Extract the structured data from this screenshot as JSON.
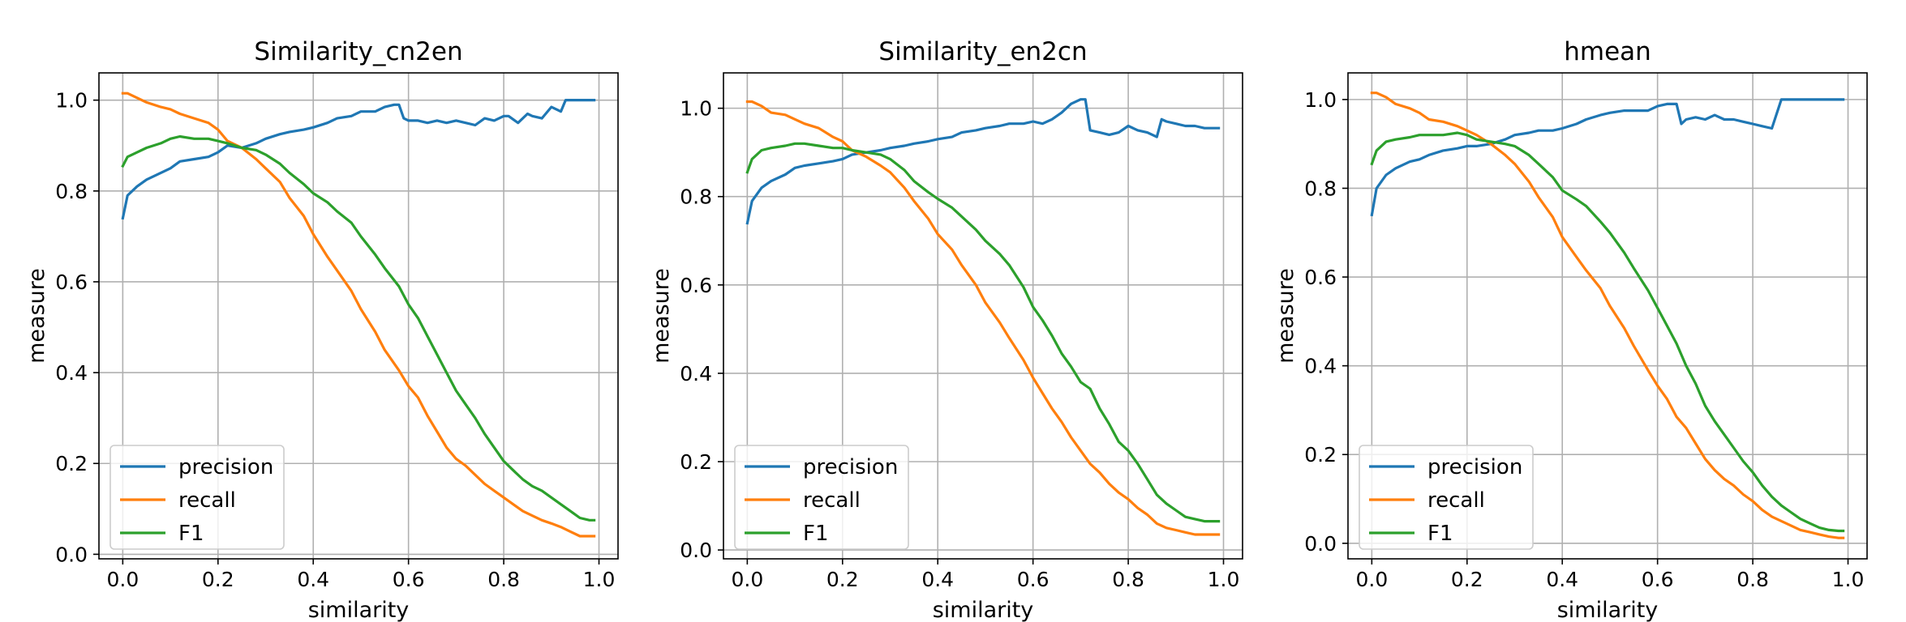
{
  "chart_data": [
    {
      "type": "line",
      "title": "Similarity_cn2en",
      "xlabel": "similarity",
      "ylabel": "measure",
      "xlim": [
        -0.05,
        1.04
      ],
      "ylim": [
        -0.01,
        1.06
      ],
      "xticks": [
        0.0,
        0.2,
        0.4,
        0.6,
        0.8,
        1.0
      ],
      "yticks": [
        0.0,
        0.2,
        0.4,
        0.6,
        0.8,
        1.0
      ],
      "grid": true,
      "legend": "lower-left",
      "series": [
        {
          "name": "precision",
          "color": "#1f77b4",
          "x": [
            0.0,
            0.01,
            0.03,
            0.05,
            0.08,
            0.1,
            0.12,
            0.15,
            0.18,
            0.2,
            0.22,
            0.25,
            0.28,
            0.3,
            0.33,
            0.35,
            0.38,
            0.4,
            0.43,
            0.45,
            0.48,
            0.5,
            0.53,
            0.55,
            0.57,
            0.58,
            0.59,
            0.6,
            0.62,
            0.64,
            0.66,
            0.68,
            0.7,
            0.72,
            0.74,
            0.76,
            0.78,
            0.8,
            0.81,
            0.83,
            0.85,
            0.86,
            0.88,
            0.9,
            0.92,
            0.93,
            0.95,
            0.97,
            0.99
          ],
          "y": [
            0.74,
            0.79,
            0.81,
            0.825,
            0.84,
            0.85,
            0.865,
            0.87,
            0.875,
            0.885,
            0.9,
            0.895,
            0.905,
            0.915,
            0.925,
            0.93,
            0.935,
            0.94,
            0.95,
            0.96,
            0.965,
            0.975,
            0.975,
            0.985,
            0.99,
            0.99,
            0.96,
            0.955,
            0.955,
            0.95,
            0.955,
            0.95,
            0.955,
            0.95,
            0.945,
            0.96,
            0.955,
            0.965,
            0.965,
            0.95,
            0.97,
            0.965,
            0.96,
            0.985,
            0.975,
            1.0,
            1.0,
            1.0,
            1.0
          ]
        },
        {
          "name": "recall",
          "color": "#ff7f0e",
          "x": [
            0.0,
            0.01,
            0.03,
            0.05,
            0.08,
            0.1,
            0.12,
            0.15,
            0.18,
            0.2,
            0.22,
            0.25,
            0.28,
            0.3,
            0.33,
            0.35,
            0.38,
            0.4,
            0.43,
            0.45,
            0.48,
            0.5,
            0.53,
            0.55,
            0.58,
            0.6,
            0.62,
            0.64,
            0.66,
            0.68,
            0.7,
            0.72,
            0.74,
            0.76,
            0.78,
            0.8,
            0.82,
            0.84,
            0.86,
            0.88,
            0.9,
            0.92,
            0.94,
            0.96,
            0.98,
            0.99
          ],
          "y": [
            1.015,
            1.015,
            1.005,
            0.995,
            0.985,
            0.98,
            0.97,
            0.96,
            0.95,
            0.935,
            0.91,
            0.895,
            0.87,
            0.85,
            0.82,
            0.785,
            0.745,
            0.705,
            0.655,
            0.625,
            0.58,
            0.54,
            0.49,
            0.45,
            0.405,
            0.37,
            0.345,
            0.305,
            0.27,
            0.235,
            0.21,
            0.195,
            0.175,
            0.155,
            0.14,
            0.125,
            0.11,
            0.095,
            0.085,
            0.075,
            0.068,
            0.06,
            0.05,
            0.04,
            0.04,
            0.04
          ]
        },
        {
          "name": "F1",
          "color": "#2ca02c",
          "x": [
            0.0,
            0.01,
            0.03,
            0.05,
            0.08,
            0.1,
            0.12,
            0.15,
            0.18,
            0.2,
            0.22,
            0.25,
            0.28,
            0.3,
            0.33,
            0.35,
            0.38,
            0.4,
            0.43,
            0.45,
            0.48,
            0.5,
            0.53,
            0.55,
            0.58,
            0.6,
            0.62,
            0.64,
            0.66,
            0.68,
            0.7,
            0.72,
            0.74,
            0.76,
            0.78,
            0.8,
            0.82,
            0.84,
            0.86,
            0.88,
            0.9,
            0.92,
            0.94,
            0.96,
            0.98,
            0.99
          ],
          "y": [
            0.855,
            0.875,
            0.885,
            0.895,
            0.905,
            0.915,
            0.92,
            0.915,
            0.915,
            0.91,
            0.905,
            0.895,
            0.89,
            0.88,
            0.86,
            0.84,
            0.815,
            0.795,
            0.775,
            0.755,
            0.73,
            0.7,
            0.66,
            0.63,
            0.59,
            0.55,
            0.52,
            0.48,
            0.44,
            0.4,
            0.36,
            0.33,
            0.3,
            0.265,
            0.235,
            0.205,
            0.185,
            0.165,
            0.15,
            0.14,
            0.125,
            0.11,
            0.095,
            0.08,
            0.075,
            0.075
          ]
        }
      ]
    },
    {
      "type": "line",
      "title": "Similarity_en2cn",
      "xlabel": "similarity",
      "ylabel": "measure",
      "xlim": [
        -0.05,
        1.04
      ],
      "ylim": [
        -0.02,
        1.08
      ],
      "xticks": [
        0.0,
        0.2,
        0.4,
        0.6,
        0.8,
        1.0
      ],
      "yticks": [
        0.0,
        0.2,
        0.4,
        0.6,
        0.8,
        1.0
      ],
      "grid": true,
      "legend": "lower-left",
      "series": [
        {
          "name": "precision",
          "color": "#1f77b4",
          "x": [
            0.0,
            0.01,
            0.03,
            0.05,
            0.08,
            0.1,
            0.12,
            0.15,
            0.18,
            0.2,
            0.22,
            0.25,
            0.28,
            0.3,
            0.33,
            0.35,
            0.38,
            0.4,
            0.43,
            0.45,
            0.48,
            0.5,
            0.53,
            0.55,
            0.58,
            0.6,
            0.62,
            0.64,
            0.66,
            0.68,
            0.7,
            0.71,
            0.72,
            0.74,
            0.76,
            0.78,
            0.8,
            0.82,
            0.84,
            0.86,
            0.87,
            0.88,
            0.9,
            0.92,
            0.94,
            0.96,
            0.98,
            0.99
          ],
          "y": [
            0.74,
            0.79,
            0.82,
            0.835,
            0.85,
            0.865,
            0.87,
            0.875,
            0.88,
            0.885,
            0.895,
            0.9,
            0.905,
            0.91,
            0.915,
            0.92,
            0.925,
            0.93,
            0.935,
            0.945,
            0.95,
            0.955,
            0.96,
            0.965,
            0.965,
            0.97,
            0.965,
            0.975,
            0.99,
            1.01,
            1.02,
            1.02,
            0.95,
            0.945,
            0.94,
            0.945,
            0.96,
            0.95,
            0.945,
            0.935,
            0.975,
            0.97,
            0.965,
            0.96,
            0.96,
            0.955,
            0.955,
            0.955
          ]
        },
        {
          "name": "recall",
          "color": "#ff7f0e",
          "x": [
            0.0,
            0.01,
            0.03,
            0.05,
            0.08,
            0.1,
            0.12,
            0.15,
            0.18,
            0.2,
            0.22,
            0.25,
            0.28,
            0.3,
            0.33,
            0.35,
            0.38,
            0.4,
            0.43,
            0.45,
            0.48,
            0.5,
            0.53,
            0.55,
            0.58,
            0.6,
            0.62,
            0.64,
            0.66,
            0.68,
            0.7,
            0.72,
            0.74,
            0.76,
            0.78,
            0.8,
            0.82,
            0.84,
            0.86,
            0.88,
            0.9,
            0.92,
            0.94,
            0.96,
            0.98,
            0.99
          ],
          "y": [
            1.015,
            1.015,
            1.005,
            0.99,
            0.985,
            0.975,
            0.965,
            0.955,
            0.935,
            0.925,
            0.905,
            0.89,
            0.87,
            0.855,
            0.82,
            0.79,
            0.75,
            0.715,
            0.68,
            0.645,
            0.6,
            0.56,
            0.515,
            0.48,
            0.43,
            0.39,
            0.355,
            0.32,
            0.29,
            0.255,
            0.225,
            0.195,
            0.175,
            0.15,
            0.13,
            0.115,
            0.095,
            0.08,
            0.06,
            0.05,
            0.045,
            0.04,
            0.035,
            0.035,
            0.035,
            0.035
          ]
        },
        {
          "name": "F1",
          "color": "#2ca02c",
          "x": [
            0.0,
            0.01,
            0.03,
            0.05,
            0.08,
            0.1,
            0.12,
            0.15,
            0.18,
            0.2,
            0.22,
            0.25,
            0.28,
            0.3,
            0.33,
            0.35,
            0.38,
            0.4,
            0.43,
            0.45,
            0.48,
            0.5,
            0.53,
            0.55,
            0.58,
            0.6,
            0.62,
            0.64,
            0.66,
            0.68,
            0.7,
            0.72,
            0.74,
            0.76,
            0.78,
            0.8,
            0.82,
            0.84,
            0.86,
            0.88,
            0.9,
            0.92,
            0.94,
            0.96,
            0.98,
            0.99
          ],
          "y": [
            0.855,
            0.885,
            0.905,
            0.91,
            0.915,
            0.92,
            0.92,
            0.915,
            0.91,
            0.91,
            0.905,
            0.9,
            0.895,
            0.885,
            0.86,
            0.835,
            0.81,
            0.795,
            0.775,
            0.755,
            0.725,
            0.7,
            0.67,
            0.645,
            0.595,
            0.55,
            0.52,
            0.485,
            0.445,
            0.415,
            0.38,
            0.365,
            0.32,
            0.285,
            0.245,
            0.225,
            0.195,
            0.16,
            0.125,
            0.105,
            0.09,
            0.075,
            0.07,
            0.065,
            0.065,
            0.065
          ]
        }
      ]
    },
    {
      "type": "line",
      "title": "hmean",
      "xlabel": "similarity",
      "ylabel": "measure",
      "xlim": [
        -0.05,
        1.04
      ],
      "ylim": [
        -0.035,
        1.06
      ],
      "xticks": [
        0.0,
        0.2,
        0.4,
        0.6,
        0.8,
        1.0
      ],
      "yticks": [
        0.0,
        0.2,
        0.4,
        0.6,
        0.8,
        1.0
      ],
      "grid": true,
      "legend": "lower-left",
      "series": [
        {
          "name": "precision",
          "color": "#1f77b4",
          "x": [
            0.0,
            0.01,
            0.03,
            0.05,
            0.08,
            0.1,
            0.12,
            0.15,
            0.18,
            0.2,
            0.22,
            0.25,
            0.28,
            0.3,
            0.33,
            0.35,
            0.38,
            0.4,
            0.43,
            0.45,
            0.48,
            0.5,
            0.53,
            0.55,
            0.58,
            0.6,
            0.62,
            0.64,
            0.65,
            0.66,
            0.68,
            0.7,
            0.72,
            0.74,
            0.76,
            0.78,
            0.8,
            0.82,
            0.84,
            0.86,
            0.88,
            0.9,
            0.92,
            0.95,
            0.97,
            0.99
          ],
          "y": [
            0.74,
            0.8,
            0.83,
            0.845,
            0.86,
            0.865,
            0.875,
            0.885,
            0.89,
            0.895,
            0.895,
            0.9,
            0.91,
            0.92,
            0.925,
            0.93,
            0.93,
            0.935,
            0.945,
            0.955,
            0.965,
            0.97,
            0.975,
            0.975,
            0.975,
            0.985,
            0.99,
            0.99,
            0.945,
            0.955,
            0.96,
            0.955,
            0.965,
            0.955,
            0.955,
            0.95,
            0.945,
            0.94,
            0.935,
            1.0,
            1.0,
            1.0,
            1.0,
            1.0,
            1.0,
            1.0
          ]
        },
        {
          "name": "recall",
          "color": "#ff7f0e",
          "x": [
            0.0,
            0.01,
            0.03,
            0.05,
            0.08,
            0.1,
            0.12,
            0.15,
            0.18,
            0.2,
            0.22,
            0.25,
            0.28,
            0.3,
            0.33,
            0.35,
            0.38,
            0.4,
            0.43,
            0.45,
            0.48,
            0.5,
            0.53,
            0.55,
            0.58,
            0.6,
            0.62,
            0.64,
            0.66,
            0.68,
            0.7,
            0.72,
            0.74,
            0.76,
            0.78,
            0.8,
            0.82,
            0.84,
            0.86,
            0.88,
            0.9,
            0.92,
            0.94,
            0.96,
            0.98,
            0.99
          ],
          "y": [
            1.015,
            1.015,
            1.005,
            0.99,
            0.98,
            0.97,
            0.955,
            0.95,
            0.94,
            0.93,
            0.92,
            0.9,
            0.875,
            0.855,
            0.815,
            0.78,
            0.735,
            0.69,
            0.645,
            0.615,
            0.575,
            0.535,
            0.485,
            0.445,
            0.39,
            0.355,
            0.325,
            0.285,
            0.26,
            0.225,
            0.19,
            0.165,
            0.145,
            0.13,
            0.11,
            0.095,
            0.075,
            0.06,
            0.05,
            0.04,
            0.03,
            0.025,
            0.02,
            0.015,
            0.012,
            0.012
          ]
        },
        {
          "name": "F1",
          "color": "#2ca02c",
          "x": [
            0.0,
            0.01,
            0.03,
            0.05,
            0.08,
            0.1,
            0.12,
            0.15,
            0.18,
            0.2,
            0.22,
            0.25,
            0.28,
            0.3,
            0.33,
            0.35,
            0.38,
            0.4,
            0.43,
            0.45,
            0.48,
            0.5,
            0.53,
            0.55,
            0.58,
            0.6,
            0.62,
            0.64,
            0.66,
            0.68,
            0.7,
            0.72,
            0.74,
            0.76,
            0.78,
            0.8,
            0.82,
            0.84,
            0.86,
            0.88,
            0.9,
            0.92,
            0.94,
            0.96,
            0.98,
            0.99
          ],
          "y": [
            0.855,
            0.885,
            0.905,
            0.91,
            0.915,
            0.92,
            0.92,
            0.92,
            0.925,
            0.92,
            0.91,
            0.905,
            0.9,
            0.895,
            0.875,
            0.855,
            0.825,
            0.795,
            0.775,
            0.76,
            0.725,
            0.7,
            0.655,
            0.62,
            0.57,
            0.53,
            0.49,
            0.45,
            0.4,
            0.36,
            0.31,
            0.275,
            0.245,
            0.215,
            0.185,
            0.16,
            0.13,
            0.105,
            0.085,
            0.07,
            0.055,
            0.045,
            0.035,
            0.03,
            0.028,
            0.028
          ]
        }
      ]
    }
  ]
}
